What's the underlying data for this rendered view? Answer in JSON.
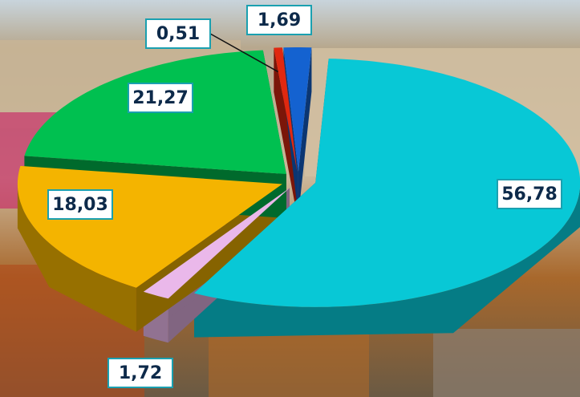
{
  "chart_data": {
    "type": "pie3d",
    "values": [
      56.78,
      1.72,
      18.03,
      21.27,
      0.51,
      1.69
    ],
    "value_labels": [
      "56,78",
      "1,72",
      "18,03",
      "21,27",
      "0,51",
      "1,69"
    ],
    "colors": [
      "#08c8d6",
      "#eab8ea",
      "#f4b400",
      "#00c050",
      "#e02810",
      "#1462d0"
    ]
  }
}
